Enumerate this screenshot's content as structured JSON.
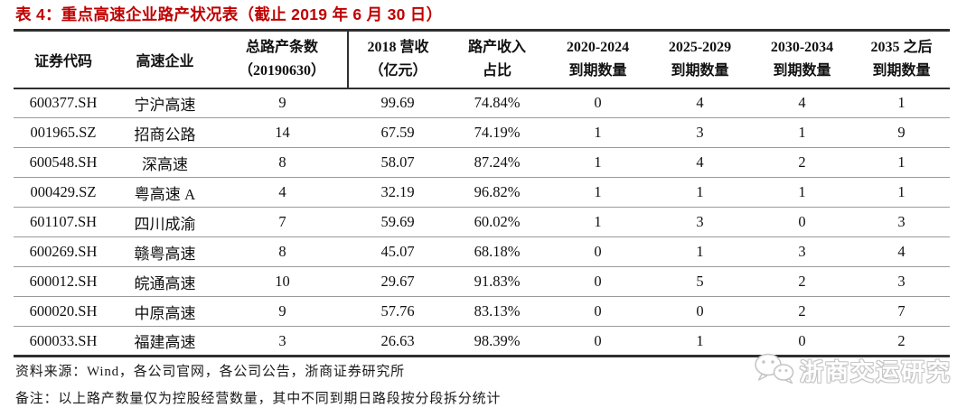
{
  "title": "表 4：重点高速企业路产状况表（截止 2019 年 6 月 30 日）",
  "table": {
    "columns": [
      {
        "line1": "证券代码",
        "line2": ""
      },
      {
        "line1": "高速企业",
        "line2": ""
      },
      {
        "line1": "总路产条数",
        "line2": "（20190630）"
      },
      {
        "line1": "2018 营收",
        "line2": "（亿元）"
      },
      {
        "line1": "路产收入",
        "line2": "占比"
      },
      {
        "line1": "2020-2024",
        "line2": "到期数量"
      },
      {
        "line1": "2025-2029",
        "line2": "到期数量"
      },
      {
        "line1": "2030-2034",
        "line2": "到期数量"
      },
      {
        "line1": "2035 之后",
        "line2": "到期数量"
      }
    ],
    "column_keys": [
      "cell-stock-code",
      "cell-company-name",
      "cell-total-road-assets",
      "cell-revenue-2018",
      "cell-road-revenue-ratio",
      "cell-due-2020-2024",
      "cell-due-2025-2029",
      "cell-due-2030-2034",
      "cell-due-after-2035"
    ],
    "rows": [
      [
        "600377.SH",
        "宁沪高速",
        "9",
        "99.69",
        "74.84%",
        "0",
        "4",
        "4",
        "1"
      ],
      [
        "001965.SZ",
        "招商公路",
        "14",
        "67.59",
        "74.19%",
        "1",
        "3",
        "1",
        "9"
      ],
      [
        "600548.SH",
        "深高速",
        "8",
        "58.07",
        "87.24%",
        "1",
        "4",
        "2",
        "1"
      ],
      [
        "000429.SZ",
        "粤高速 A",
        "4",
        "32.19",
        "96.82%",
        "1",
        "1",
        "1",
        "1"
      ],
      [
        "601107.SH",
        "四川成渝",
        "7",
        "59.69",
        "60.02%",
        "1",
        "3",
        "0",
        "3"
      ],
      [
        "600269.SH",
        "赣粤高速",
        "8",
        "45.07",
        "68.18%",
        "0",
        "1",
        "3",
        "4"
      ],
      [
        "600012.SH",
        "皖通高速",
        "10",
        "29.67",
        "91.83%",
        "0",
        "5",
        "2",
        "3"
      ],
      [
        "600020.SH",
        "中原高速",
        "9",
        "57.76",
        "83.13%",
        "0",
        "0",
        "2",
        "7"
      ],
      [
        "600033.SH",
        "福建高速",
        "3",
        "26.63",
        "98.39%",
        "0",
        "1",
        "0",
        "2"
      ]
    ]
  },
  "footer": {
    "source": "资料来源：Wind，各公司官网，各公司公告，浙商证券研究所",
    "note": "备注：以上路产数量仅为控股经营数量，其中不同到期日路段按分段拆分统计"
  },
  "watermark": {
    "text": "浙商交运研究",
    "icon": "wechat-logo-icon"
  },
  "colors": {
    "title_red": "#c00000",
    "border_dark": "#2f2f2f",
    "row_line": "#9a9a9a",
    "watermark_gray": "#c6c6c6",
    "text": "#111111"
  }
}
